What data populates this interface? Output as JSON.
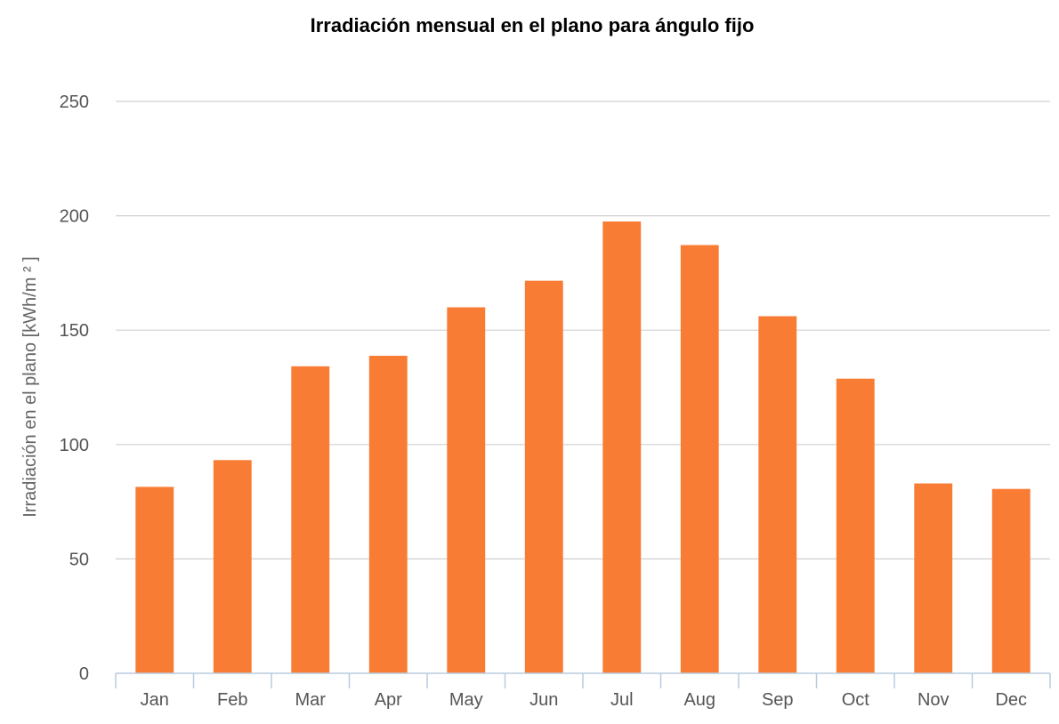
{
  "chart_data": {
    "type": "bar",
    "title": "Irradiación mensual en el plano para ángulo fijo",
    "ylabel": "Irradiación en el plano [kWh/m ² ]",
    "xlabel": "",
    "categories": [
      "Jan",
      "Feb",
      "Mar",
      "Apr",
      "May",
      "Jun",
      "Jul",
      "Aug",
      "Sep",
      "Oct",
      "Nov",
      "Dec"
    ],
    "values": [
      81.5,
      93.2,
      134.2,
      138.8,
      160.0,
      171.6,
      197.5,
      187.2,
      156.1,
      128.8,
      83.0,
      80.6
    ],
    "ylim": [
      0,
      250
    ],
    "yticks": [
      0,
      50,
      100,
      150,
      200,
      250
    ],
    "grid": true,
    "colors": {
      "bar": "#f97c35",
      "grid": "#d0d0d0",
      "axis": "#b8cce0"
    }
  }
}
